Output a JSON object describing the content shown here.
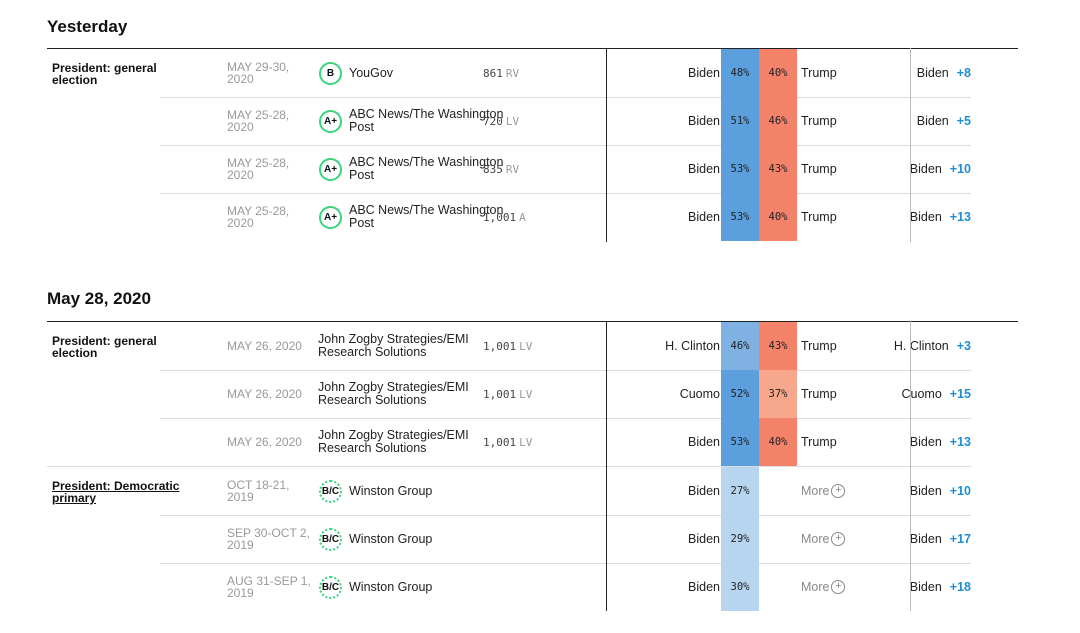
{
  "sections": [
    {
      "day": "Yesterday",
      "category": "President: general election",
      "category_is_link": false,
      "rows": [
        {
          "dates": "MAY 29-30, 2020",
          "grade": "B",
          "pollster": "YouGov",
          "sample": "861",
          "population": "RV",
          "cand1": "Biden",
          "pct1": "48%",
          "pct2": "40%",
          "cand2": "Trump",
          "net_cand": "Biden",
          "net_margin": "+8"
        },
        {
          "dates": "MAY 25-28, 2020",
          "grade": "A+",
          "pollster": "ABC News/The Washington Post",
          "sample": "720",
          "population": "LV",
          "cand1": "Biden",
          "pct1": "51%",
          "pct2": "46%",
          "cand2": "Trump",
          "net_cand": "Biden",
          "net_margin": "+5"
        },
        {
          "dates": "MAY 25-28, 2020",
          "grade": "A+",
          "pollster": "ABC News/The Washington Post",
          "sample": "835",
          "population": "RV",
          "cand1": "Biden",
          "pct1": "53%",
          "pct2": "43%",
          "cand2": "Trump",
          "net_cand": "Biden",
          "net_margin": "+10"
        },
        {
          "dates": "MAY 25-28, 2020",
          "grade": "A+",
          "pollster": "ABC News/The Washington Post",
          "sample": "1,001",
          "population": "A",
          "cand1": "Biden",
          "pct1": "53%",
          "pct2": "40%",
          "cand2": "Trump",
          "net_cand": "Biden",
          "net_margin": "+13"
        }
      ]
    },
    {
      "day": "May 28, 2020",
      "groups": [
        {
          "category": "President: general election",
          "category_is_link": false,
          "rows": [
            {
              "dates": "MAY 26, 2020",
              "grade": "",
              "pollster": "John Zogby Strategies/EMI Research Solutions",
              "sample": "1,001",
              "population": "LV",
              "cand1": "H. Clinton",
              "pct1": "46%",
              "pct2": "43%",
              "cand2": "Trump",
              "net_cand": "H. Clinton",
              "net_margin": "+3"
            },
            {
              "dates": "MAY 26, 2020",
              "grade": "",
              "pollster": "John Zogby Strategies/EMI Research Solutions",
              "sample": "1,001",
              "population": "LV",
              "cand1": "Cuomo",
              "pct1": "52%",
              "pct2": "37%",
              "cand2": "Trump",
              "net_cand": "Cuomo",
              "net_margin": "+15"
            },
            {
              "dates": "MAY 26, 2020",
              "grade": "",
              "pollster": "John Zogby Strategies/EMI Research Solutions",
              "sample": "1,001",
              "population": "LV",
              "cand1": "Biden",
              "pct1": "53%",
              "pct2": "40%",
              "cand2": "Trump",
              "net_cand": "Biden",
              "net_margin": "+13"
            }
          ]
        },
        {
          "category": "President: Democratic primary",
          "category_is_link": true,
          "rows": [
            {
              "dates": "OCT 18-21, 2019",
              "grade": "B/C",
              "pollster": "Winston Group",
              "sample": "",
              "population": "",
              "cand1": "Biden",
              "pct1": "27%",
              "more": "More",
              "net_cand": "Biden",
              "net_margin": "+10"
            },
            {
              "dates": "SEP 30-OCT 2, 2019",
              "grade": "B/C",
              "pollster": "Winston Group",
              "sample": "",
              "population": "",
              "cand1": "Biden",
              "pct1": "29%",
              "more": "More",
              "net_cand": "Biden",
              "net_margin": "+17"
            },
            {
              "dates": "AUG 31-SEP 1, 2019",
              "grade": "B/C",
              "pollster": "Winston Group",
              "sample": "",
              "population": "",
              "cand1": "Biden",
              "pct1": "30%",
              "more": "More",
              "net_cand": "Biden",
              "net_margin": "+18"
            }
          ]
        }
      ]
    }
  ],
  "colors": {
    "dem": "#5b9fdd",
    "rep": "#f4836a",
    "dem_light": "#a9cdef",
    "rep_light": "#f8a88d",
    "dem_primary": "#b8d5f0",
    "accent": "#1d8fd6",
    "grade": "#3bd47f"
  }
}
